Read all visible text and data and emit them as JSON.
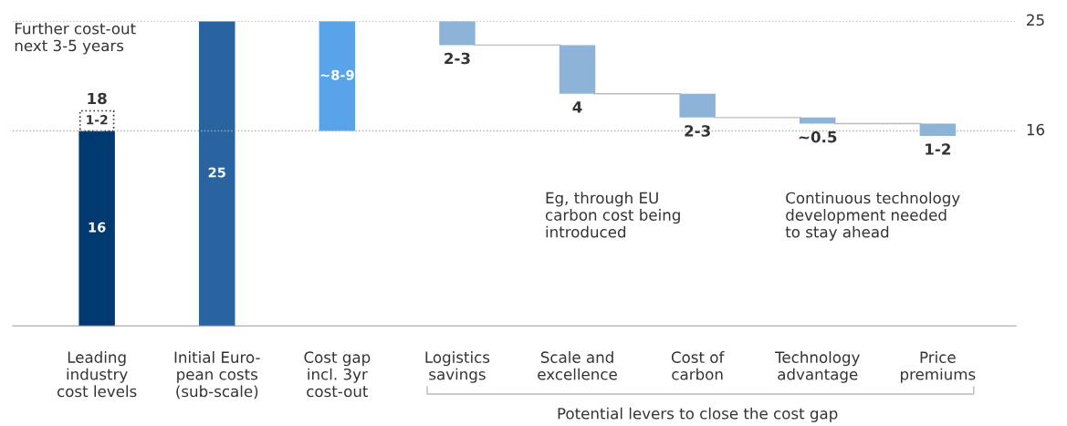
{
  "chart_data": {
    "type": "bar",
    "categories": [
      "Leading\nindustry\ncost levels",
      "Initial Euro-\npean costs\n(sub-scale)",
      "Cost gap\nincl. 3yr\ncost-out",
      "Logistics\nsavings",
      "Scale and\nexcellence",
      "Cost of\ncarbon",
      "Technology\nadvantage",
      "Price\npremiums"
    ],
    "series": [
      {
        "colors": [
          "#003a70",
          "#2a64a0",
          "#59a3ea",
          "#8db3d9",
          "#8db3d9",
          "#8db3d9",
          "#8db3d9",
          "#8db3d9"
        ],
        "values": [
          16,
          25,
          9,
          1.95,
          4,
          1.95,
          0.5,
          1
        ],
        "base": [
          0,
          0,
          16,
          23.05,
          19.05,
          17.1,
          16.6,
          15.6
        ],
        "value_labels": [
          "16",
          "25",
          "~8-9",
          "2-3",
          "4",
          "2-3",
          "~0.5",
          "1-2"
        ]
      },
      {
        "color": "#ffffff",
        "line_style": "dotted",
        "values": [
          1.65,
          null,
          null,
          null,
          null,
          null,
          null,
          null
        ],
        "base": [
          16,
          null,
          null,
          null,
          null,
          null,
          null,
          null
        ],
        "value_labels": [
          "1-2",
          null,
          null,
          null,
          null,
          null,
          null,
          null
        ]
      }
    ],
    "totals": [
      "18",
      null,
      null,
      null,
      null,
      null,
      null,
      null
    ],
    "ylim": [
      0,
      25
    ],
    "tick_labels": "x",
    "ref_lines": [
      {
        "axis": "y",
        "value": 25,
        "label": "25",
        "color": "#aaaaaa",
        "line_style": "dotted"
      },
      {
        "axis": "y",
        "value": 16,
        "label": "16",
        "color": "#aaaaaa",
        "line_style": "dotted"
      }
    ],
    "annotations": [
      "Further cost-out\nnext 3-5 years",
      "Eg, through EU\ncarbon cost being\nintroduced",
      "Continuous technology\ndevelopment needed\nto stay ahead",
      "Potential levers to close the cost gap"
    ],
    "grid": false,
    "legend": false
  }
}
